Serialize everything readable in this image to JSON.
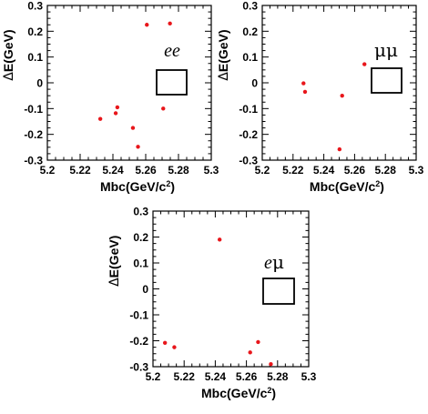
{
  "chart_data": [
    {
      "type": "scatter",
      "xlabel": "Mbc(GeV/c",
      "xlabel_sup": "2",
      "xlabel_end": ")",
      "ylabel_delta": "Δ",
      "ylabel_rest": "E(GeV)",
      "xlim": [
        5.2,
        5.3
      ],
      "ylim": [
        -0.3,
        0.3
      ],
      "xticks": [
        "5.2",
        "5.22",
        "5.24",
        "5.26",
        "5.28",
        "5.3"
      ],
      "yticks": [
        "-0.3",
        "-0.2",
        "-0.1",
        "0",
        "0.1",
        "0.2",
        "0.3"
      ],
      "annotation": "ee",
      "marker_color": "#e8161b",
      "grid": false,
      "series": [
        {
          "x": [
            5.2607,
            5.2748,
            5.2323,
            5.2417,
            5.2427,
            5.2522,
            5.2553,
            5.2707
          ],
          "y": [
            0.225,
            0.23,
            -0.14,
            -0.118,
            -0.095,
            -0.175,
            -0.248,
            -0.1
          ]
        }
      ]
    },
    {
      "type": "scatter",
      "xlabel": "Mbc(GeV/c",
      "xlabel_sup": "2",
      "xlabel_end": ")",
      "ylabel_delta": "Δ",
      "ylabel_rest": "E(GeV)",
      "xlim": [
        5.2,
        5.3
      ],
      "ylim": [
        -0.3,
        0.3
      ],
      "xticks": [
        "5.2",
        "5.22",
        "5.24",
        "5.26",
        "5.28",
        "5.3"
      ],
      "yticks": [
        "-0.3",
        "-0.2",
        "-0.1",
        "0",
        "0.1",
        "0.2",
        "0.3"
      ],
      "annotation": "μμ",
      "marker_color": "#e8161b",
      "grid": false,
      "series": [
        {
          "x": [
            5.2268,
            5.2278,
            5.2519,
            5.2502,
            5.2664
          ],
          "y": [
            -0.002,
            -0.035,
            -0.05,
            -0.258,
            0.072
          ]
        }
      ]
    },
    {
      "type": "scatter",
      "xlabel": "Mbc(GeV/c",
      "xlabel_sup": "2",
      "xlabel_end": ")",
      "ylabel_delta": "Δ",
      "ylabel_rest": "E(GeV)",
      "xlim": [
        5.2,
        5.3
      ],
      "ylim": [
        -0.3,
        0.3
      ],
      "xticks": [
        "5.2",
        "5.22",
        "5.24",
        "5.26",
        "5.28",
        "5.3"
      ],
      "yticks": [
        "-0.3",
        "-0.2",
        "-0.1",
        "0",
        "0.1",
        "0.2",
        "0.3"
      ],
      "annotation": "eμ",
      "marker_color": "#e8161b",
      "grid": false,
      "series": [
        {
          "x": [
            5.2428,
            5.2077,
            5.2137,
            5.2624,
            5.2675,
            5.2757
          ],
          "y": [
            0.19,
            -0.208,
            -0.225,
            -0.245,
            -0.205,
            -0.29
          ]
        }
      ]
    }
  ]
}
